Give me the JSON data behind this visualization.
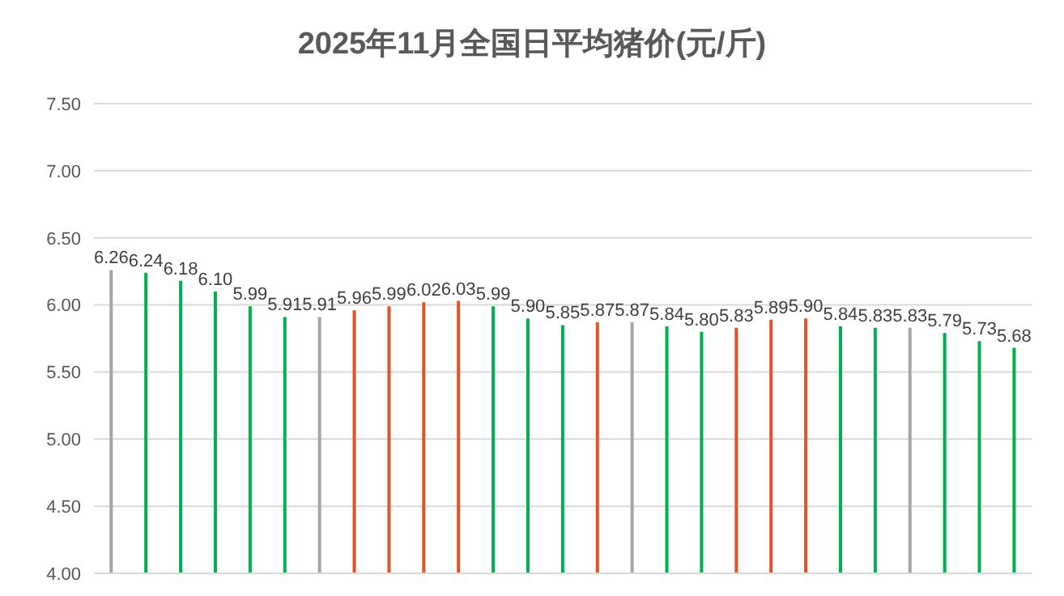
{
  "chart_data": {
    "type": "bar",
    "title": "2025年11月全国日平均猪价(元/斤)",
    "categories": [
      null,
      null,
      null,
      null,
      null,
      null,
      null,
      null,
      null,
      null,
      null,
      null,
      null,
      null,
      null,
      null,
      null,
      null,
      null,
      null,
      null,
      null,
      null,
      null,
      null,
      null,
      null
    ],
    "values": [
      6.26,
      6.24,
      6.18,
      6.1,
      5.99,
      5.91,
      5.91,
      5.96,
      5.99,
      6.02,
      6.03,
      5.99,
      5.9,
      5.85,
      5.87,
      5.87,
      5.84,
      5.8,
      5.83,
      5.89,
      5.9,
      5.84,
      5.83,
      5.83,
      5.79,
      5.73,
      5.68
    ],
    "colors": [
      "#a5a5a5",
      "#00b050",
      "#00b050",
      "#00b050",
      "#00b050",
      "#00b050",
      "#a5a5a5",
      "#e15427",
      "#e15427",
      "#e15427",
      "#e15427",
      "#00b050",
      "#00b050",
      "#00b050",
      "#e15427",
      "#a5a5a5",
      "#00b050",
      "#00b050",
      "#e15427",
      "#e15427",
      "#e15427",
      "#00b050",
      "#00b050",
      "#a5a5a5",
      "#00b050",
      "#00b050",
      "#00b050"
    ],
    "value_labels": [
      "6.26",
      "6.24",
      "6.18",
      "6.10",
      "5.99",
      "5.91",
      "5.91",
      "5.96",
      "5.99",
      "6.02",
      "6.03",
      "5.99",
      "5.90",
      "5.85",
      "5.87",
      "5.87",
      "5.84",
      "5.80",
      "5.83",
      "5.89",
      "5.90",
      "5.84",
      "5.83",
      "5.83",
      "5.79",
      "5.73",
      "5.68"
    ],
    "ylim": [
      4.0,
      7.5
    ],
    "yticks": [
      {
        "value": 4.0,
        "label": "4.00"
      },
      {
        "value": 4.5,
        "label": "4.50"
      },
      {
        "value": 5.0,
        "label": "5.00"
      },
      {
        "value": 5.5,
        "label": "5.50"
      },
      {
        "value": 6.0,
        "label": "6.00"
      },
      {
        "value": 6.5,
        "label": "6.50"
      },
      {
        "value": 7.0,
        "label": "7.00"
      },
      {
        "value": 7.5,
        "label": "7.50"
      }
    ],
    "grid": "y"
  }
}
